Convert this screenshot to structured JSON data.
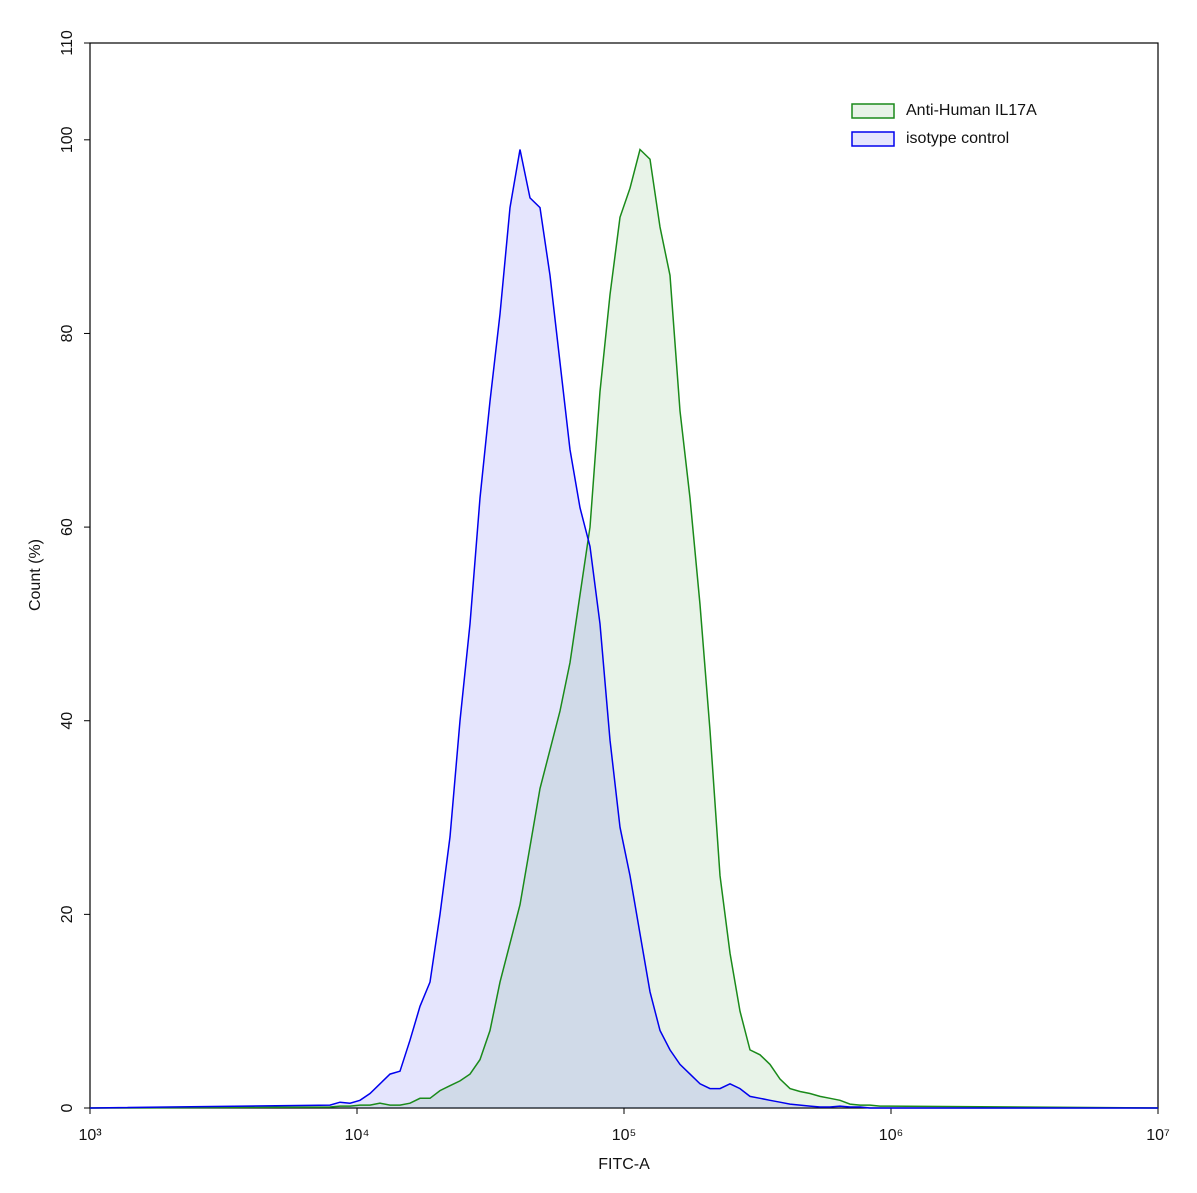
{
  "chart_data": {
    "type": "histogram-overlay",
    "xlabel": "FITC-A",
    "ylabel": "Count (%)",
    "xscale": "log",
    "xlim": [
      1000,
      10000000
    ],
    "xticks": [
      {
        "value": 1000,
        "label": "10³"
      },
      {
        "value": 10000,
        "label": "10⁴"
      },
      {
        "value": 100000,
        "label": "10⁵"
      },
      {
        "value": 1000000,
        "label": "10⁶"
      },
      {
        "value": 10000000,
        "label": "10⁷"
      }
    ],
    "ylim": [
      0,
      110
    ],
    "yticks": [
      0,
      20,
      40,
      60,
      80,
      100,
      110
    ],
    "legend": "upper right",
    "x": [
      1000,
      7924,
      8638,
      9415,
      10261,
      11186,
      12193,
      13290,
      14488,
      15792,
      17219,
      18770,
      20462,
      22302,
      24313,
      26502,
      28890,
      31489,
      34329,
      37411,
      40782,
      44453,
      48460,
      52820,
      57584,
      62779,
      68424,
      74590,
      81300,
      88630,
      96600,
      105300,
      114800,
      125100,
      136400,
      148700,
      162100,
      176700,
      192600,
      209900,
      228800,
      249500,
      271900,
      296400,
      323100,
      352300,
      384000,
      418600,
      456300,
      497400,
      542200,
      591000,
      644200,
      702300,
      765600,
      834400,
      909700,
      10000000
    ],
    "series": [
      {
        "name": "Anti-Human IL17A",
        "color": "#1a8a1a",
        "values": [
          0,
          0.1,
          0.2,
          0.2,
          0.3,
          0.3,
          0.5,
          0.3,
          0.3,
          0.5,
          1,
          1,
          1.8,
          2.3,
          2.8,
          3.5,
          5,
          8,
          13,
          17,
          21,
          27,
          33,
          37,
          41,
          46,
          53,
          60,
          74,
          84,
          92,
          95,
          99,
          98,
          91,
          86,
          72,
          63,
          52,
          39,
          24,
          16,
          10,
          6,
          5.5,
          4.5,
          3,
          2,
          1.7,
          1.5,
          1.2,
          1,
          0.8,
          0.4,
          0.3,
          0.3,
          0.2,
          0
        ]
      },
      {
        "name": "isotype control",
        "color": "#0000ee",
        "values": [
          0,
          0.3,
          0.6,
          0.5,
          0.8,
          1.5,
          2.5,
          3.5,
          3.8,
          7,
          10.5,
          13,
          20,
          28,
          40,
          50,
          63,
          73,
          82,
          93,
          99,
          94,
          93,
          86,
          77,
          68,
          62,
          58,
          50,
          38,
          29,
          24,
          18,
          12,
          8,
          6,
          4.5,
          3.5,
          2.5,
          2,
          2,
          2.5,
          2,
          1.2,
          1,
          0.8,
          0.6,
          0.4,
          0.3,
          0.2,
          0.1,
          0.1,
          0.2,
          0.1,
          0.1,
          0,
          0,
          0
        ]
      }
    ]
  }
}
